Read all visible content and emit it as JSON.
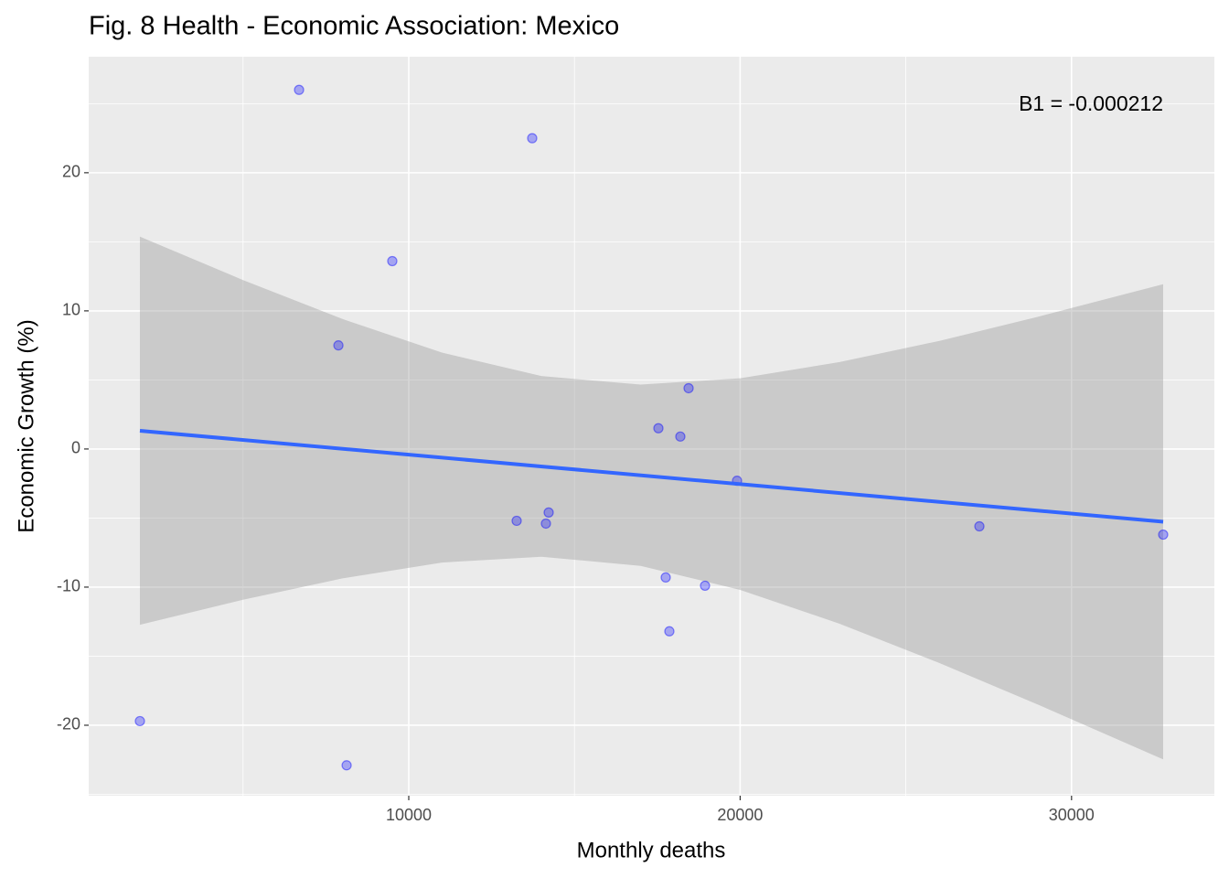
{
  "chart_data": {
    "type": "scatter",
    "title": "Fig. 8 Health - Economic Association: Mexico",
    "x_label": "Monthly deaths",
    "y_label": "Economic Growth (%)",
    "annotation": "B1 = -0.000212",
    "xlim": [
      342,
      34310
    ],
    "ylim": [
      -25.1,
      28.4
    ],
    "xticks": [
      10000,
      20000,
      30000
    ],
    "yticks": [
      -20,
      -10,
      0,
      10,
      20
    ],
    "grid": true,
    "points": {
      "color": "#0000ff",
      "x": [
        1887,
        6690,
        7877,
        8125,
        9503,
        13256,
        13725,
        14139,
        14222,
        17533,
        17754,
        17864,
        18195,
        18444,
        18940,
        19906,
        27219,
        32765
      ],
      "y": [
        -19.7,
        26.0,
        7.5,
        -22.9,
        13.6,
        -5.2,
        22.5,
        -5.4,
        -4.6,
        1.5,
        -9.3,
        -13.2,
        0.9,
        4.4,
        -9.9,
        -2.3,
        -5.6,
        -6.2
      ]
    },
    "band": {
      "color": "#999999",
      "x": [
        1887,
        5000,
        8000,
        11000,
        14000,
        17000,
        20000,
        23000,
        26000,
        29000,
        32765
      ],
      "upper": [
        15.37,
        12.23,
        9.41,
        6.98,
        5.28,
        4.66,
        5.12,
        6.29,
        7.82,
        9.58,
        11.93
      ],
      "lower": [
        -12.73,
        -10.91,
        -9.37,
        -8.22,
        -7.8,
        -8.46,
        -10.2,
        -12.65,
        -15.48,
        -18.52,
        -22.47
      ]
    },
    "fit": {
      "color": "#3366ff",
      "x": [
        1887,
        32765
      ],
      "y": [
        1.32,
        -5.27
      ]
    }
  }
}
